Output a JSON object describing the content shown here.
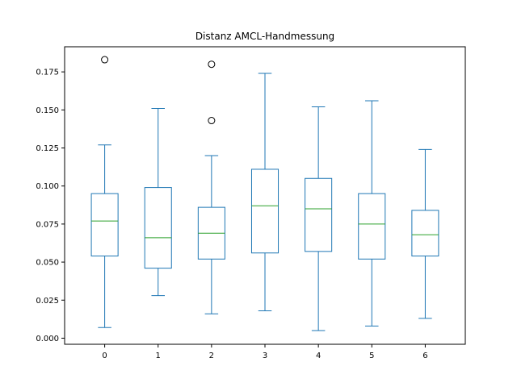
{
  "chart_data": {
    "type": "boxplot",
    "title": "Distanz AMCL-Handmessung",
    "xlabel": "",
    "ylabel": "",
    "categories": [
      "0",
      "1",
      "2",
      "3",
      "4",
      "5",
      "6"
    ],
    "boxes": [
      {
        "label": "0",
        "whisker_low": 0.007,
        "q1": 0.054,
        "median": 0.077,
        "q3": 0.095,
        "whisker_high": 0.127,
        "outliers": [
          0.183
        ]
      },
      {
        "label": "1",
        "whisker_low": 0.028,
        "q1": 0.046,
        "median": 0.066,
        "q3": 0.099,
        "whisker_high": 0.151,
        "outliers": []
      },
      {
        "label": "2",
        "whisker_low": 0.016,
        "q1": 0.052,
        "median": 0.069,
        "q3": 0.086,
        "whisker_high": 0.12,
        "outliers": [
          0.143,
          0.18
        ]
      },
      {
        "label": "3",
        "whisker_low": 0.018,
        "q1": 0.056,
        "median": 0.087,
        "q3": 0.111,
        "whisker_high": 0.174,
        "outliers": []
      },
      {
        "label": "4",
        "whisker_low": 0.005,
        "q1": 0.057,
        "median": 0.085,
        "q3": 0.105,
        "whisker_high": 0.152,
        "outliers": []
      },
      {
        "label": "5",
        "whisker_low": 0.008,
        "q1": 0.052,
        "median": 0.075,
        "q3": 0.095,
        "whisker_high": 0.156,
        "outliers": []
      },
      {
        "label": "6",
        "whisker_low": 0.013,
        "q1": 0.054,
        "median": 0.068,
        "q3": 0.084,
        "whisker_high": 0.124,
        "outliers": []
      }
    ],
    "y_ticks": [
      0.0,
      0.025,
      0.05,
      0.075,
      0.1,
      0.125,
      0.15,
      0.175
    ],
    "y_tick_labels": [
      "0.000",
      "0.025",
      "0.050",
      "0.075",
      "0.100",
      "0.125",
      "0.150",
      "0.175"
    ],
    "ylim": [
      -0.004,
      0.1915
    ],
    "grid": false,
    "legend": "none",
    "colors": {
      "box": "#1f77b4",
      "median": "#2ca02c",
      "outlier": "#000000",
      "axes": "#000000"
    }
  }
}
